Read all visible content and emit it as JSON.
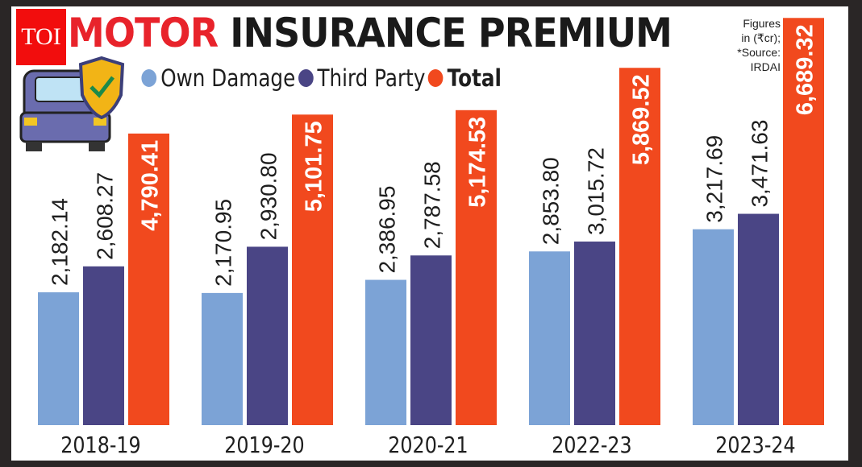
{
  "brand": {
    "logo_text": "TOI"
  },
  "chart_data": {
    "type": "bar",
    "title_prefix": "M",
    "title_highlight": "OTOR",
    "title_rest": " INSURANCE PREMIUM",
    "note": [
      "Figures",
      "in (₹cr);",
      "*Source:",
      "IRDAI"
    ],
    "categories": [
      "2018-19",
      "2019-20",
      "2020-21",
      "2022-23",
      "2023-24"
    ],
    "series": [
      {
        "name": "Own Damage",
        "color": "#7ca3d6",
        "values": [
          2182.14,
          2170.95,
          2386.95,
          2853.8,
          3217.69
        ],
        "labels": [
          "2,182.14",
          "2,170.95",
          "2,386.95",
          "2,853.80",
          "3,217.69"
        ]
      },
      {
        "name": "Third Party",
        "color": "#4a4585",
        "values": [
          2608.27,
          2930.8,
          2787.58,
          3015.72,
          3471.63
        ],
        "labels": [
          "2,608.27",
          "2,930.80",
          "2,787.58",
          "3,015.72",
          "3,471.63"
        ]
      },
      {
        "name": "Total",
        "color": "#f1491e",
        "values": [
          4790.41,
          5101.75,
          5174.53,
          5869.52,
          6689.32
        ],
        "labels": [
          "4,790.41",
          "5,101.75",
          "5,174.53",
          "5,869.52",
          "6,689.32"
        ]
      }
    ],
    "ylim": [
      0,
      7000
    ],
    "grid": false,
    "legend": "top"
  }
}
